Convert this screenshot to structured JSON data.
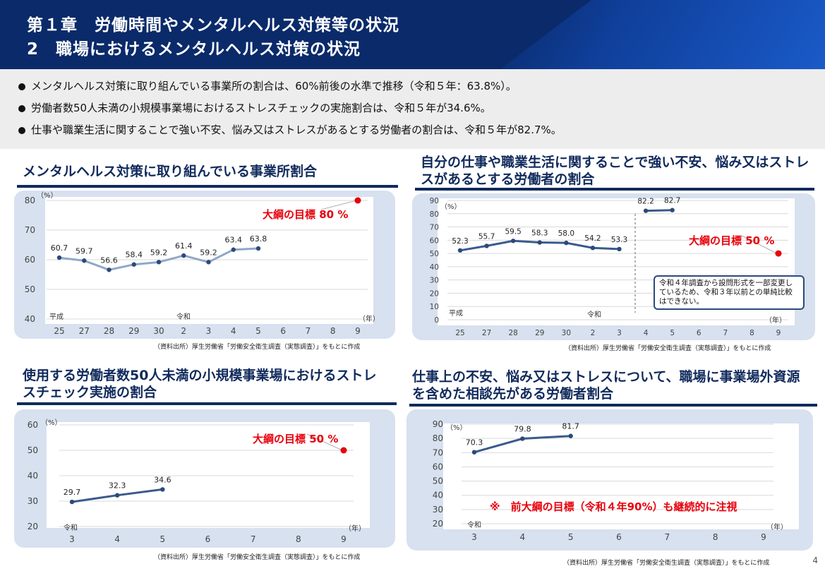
{
  "header": {
    "line1": "第１章　労働時間やメンタルヘルス対策等の状況",
    "line2": "2　職場におけるメンタルヘルス対策の状況"
  },
  "summary": [
    "メンタルヘルス対策に取り組んでいる事業所の割合は、60%前後の水準で推移（令和５年：63.8%）。",
    "労働者数50人未満の小規模事業場におけるストレスチェックの実施割合は、令和５年が34.6%。",
    "仕事や職業生活に関することで強い不安、悩み又はストレスがあるとする労働者の割合は、令和５年が82.7%。"
  ],
  "page_number": "4",
  "colors": {
    "line": "#3a5a8c",
    "line_light": "#8fa8c8",
    "target": "#e8000b",
    "header": "#0a2a6a"
  },
  "chart_data": [
    {
      "id": "c1",
      "type": "line",
      "title": "メンタルヘルス対策に取り組んでいる事業所割合",
      "ylabel": "（%）",
      "xlabel": "（年）",
      "era_labels": [
        "平成",
        "令和"
      ],
      "categories": [
        "25",
        "27",
        "28",
        "29",
        "30",
        "2",
        "3",
        "4",
        "5",
        "6",
        "7",
        "8",
        "9"
      ],
      "series": [
        {
          "values": [
            60.7,
            59.7,
            56.6,
            58.4,
            59.2,
            61.4,
            59.2,
            63.4,
            63.8,
            null,
            null,
            null,
            null
          ]
        }
      ],
      "target": {
        "value": 80,
        "category": "9",
        "label": "大綱の目標 80 %"
      },
      "ylim": [
        40,
        80
      ],
      "yticks": [
        40,
        50,
        60,
        70,
        80
      ],
      "grid": true,
      "source": "（資料出所）厚生労働省「労働安全衛生調査（実態調査）」をもとに作成"
    },
    {
      "id": "c2",
      "type": "line",
      "title": "自分の仕事や職業生活に関することで強い不安、悩み又はストレスがあるとする労働者の割合",
      "ylabel": "（%）",
      "xlabel": "（年）",
      "era_labels": [
        "平成",
        "令和"
      ],
      "categories": [
        "25",
        "27",
        "28",
        "29",
        "30",
        "2",
        "3",
        "4",
        "5",
        "6",
        "7",
        "8",
        "9"
      ],
      "series": [
        {
          "values": [
            52.3,
            55.7,
            59.5,
            58.3,
            58.0,
            54.2,
            53.3,
            null,
            null,
            null,
            null,
            null,
            null
          ]
        },
        {
          "values": [
            null,
            null,
            null,
            null,
            null,
            null,
            null,
            82.2,
            82.7,
            null,
            null,
            null,
            null
          ]
        }
      ],
      "target": {
        "value": 50,
        "category": "9",
        "label": "大綱の目標 50 %"
      },
      "note": "令和４年調査から設問形式を一部変更しているため、令和３年以前との単純比較はできない。",
      "ylim": [
        0,
        90
      ],
      "yticks": [
        0,
        10,
        20,
        30,
        40,
        50,
        60,
        70,
        80,
        90
      ],
      "grid": true,
      "source": "（資料出所）厚生労働省「労働安全衛生調査（実態調査）」をもとに作成"
    },
    {
      "id": "c3",
      "type": "line",
      "title": "使用する労働者数50人未満の小規模事業場におけるストレスチェック実施の割合",
      "ylabel": "（%）",
      "xlabel": "（年）",
      "era_labels": [
        "令和"
      ],
      "categories": [
        "3",
        "4",
        "5",
        "6",
        "7",
        "8",
        "9"
      ],
      "series": [
        {
          "values": [
            29.7,
            32.3,
            34.6,
            null,
            null,
            null,
            null
          ]
        }
      ],
      "target": {
        "value": 50,
        "category": "9",
        "label": "大綱の目標 50 %"
      },
      "ylim": [
        20,
        60
      ],
      "yticks": [
        20,
        30,
        40,
        50,
        60
      ],
      "grid": true,
      "source": "（資料出所）厚生労働省「労働安全衛生調査（実態調査）」をもとに作成"
    },
    {
      "id": "c4",
      "type": "line",
      "title": "仕事上の不安、悩み又はストレスについて、職場に事業場外資源を含めた相談先がある労働者割合",
      "ylabel": "（%）",
      "xlabel": "（年）",
      "era_labels": [
        "令和"
      ],
      "categories": [
        "3",
        "4",
        "5",
        "6",
        "7",
        "8",
        "9"
      ],
      "series": [
        {
          "values": [
            70.3,
            79.8,
            81.7,
            null,
            null,
            null,
            null
          ]
        }
      ],
      "note": "※　前大綱の目標（令和４年90%）も継続的に注視",
      "ylim": [
        20,
        90
      ],
      "yticks": [
        20,
        30,
        40,
        50,
        60,
        70,
        80,
        90
      ],
      "grid": true,
      "source": "（資料出所）厚生労働省「労働安全衛生調査（実態調査）」をもとに作成"
    }
  ]
}
